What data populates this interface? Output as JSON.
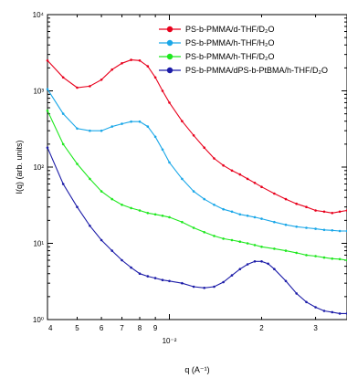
{
  "chart_data": {
    "type": "line",
    "title": "",
    "xlabel": "q (A⁻¹)",
    "ylabel": "I(q) (arb. units)",
    "x_scale": "log",
    "y_scale": "log",
    "xlim": [
      0.004,
      0.038
    ],
    "ylim": [
      1,
      10000
    ],
    "grid": false,
    "legend_position": "top-right",
    "x_tick_labels": [
      {
        "value": 0.004,
        "label": "4"
      },
      {
        "value": 0.005,
        "label": "5"
      },
      {
        "value": 0.006,
        "label": "6"
      },
      {
        "value": 0.007,
        "label": "7"
      },
      {
        "value": 0.008,
        "label": "8"
      },
      {
        "value": 0.009,
        "label": "9"
      },
      {
        "value": 0.01,
        "label": "10⁻²"
      },
      {
        "value": 0.02,
        "label": "2"
      },
      {
        "value": 0.03,
        "label": "3"
      }
    ],
    "y_tick_labels": [
      {
        "value": 1,
        "label": "10⁰"
      },
      {
        "value": 10,
        "label": "10¹"
      },
      {
        "value": 100,
        "label": "10²"
      },
      {
        "value": 1000,
        "label": "10³"
      },
      {
        "value": 10000,
        "label": "10⁴"
      }
    ],
    "series": [
      {
        "name": "PS-b-PMMA/d-THF/D₂O",
        "color": "#e8001c",
        "x": [
          0.004,
          0.0045,
          0.005,
          0.0055,
          0.006,
          0.0065,
          0.007,
          0.0075,
          0.008,
          0.0085,
          0.009,
          0.0095,
          0.01,
          0.011,
          0.012,
          0.013,
          0.014,
          0.015,
          0.016,
          0.017,
          0.018,
          0.019,
          0.02,
          0.022,
          0.024,
          0.026,
          0.028,
          0.03,
          0.032,
          0.034,
          0.036,
          0.038
        ],
        "y": [
          2500,
          1500,
          1100,
          1150,
          1400,
          1900,
          2300,
          2550,
          2500,
          2100,
          1500,
          1000,
          700,
          400,
          260,
          180,
          130,
          105,
          90,
          80,
          70,
          62,
          55,
          45,
          38,
          33,
          30,
          27,
          26,
          25,
          26,
          27
        ]
      },
      {
        "name": "PS-b-PMMA/h-THF/H₂O",
        "color": "#1aa7e8",
        "x": [
          0.004,
          0.0045,
          0.005,
          0.0055,
          0.006,
          0.0065,
          0.007,
          0.0075,
          0.008,
          0.0085,
          0.009,
          0.0095,
          0.01,
          0.011,
          0.012,
          0.013,
          0.014,
          0.015,
          0.016,
          0.017,
          0.018,
          0.019,
          0.02,
          0.022,
          0.024,
          0.026,
          0.028,
          0.03,
          0.032,
          0.034,
          0.036,
          0.038
        ],
        "y": [
          1050,
          500,
          320,
          300,
          300,
          340,
          370,
          395,
          395,
          340,
          250,
          170,
          115,
          70,
          48,
          38,
          32,
          28,
          26,
          24,
          23,
          22,
          21,
          19,
          17.5,
          16.5,
          16,
          15.5,
          15,
          14.8,
          14.5,
          14.5
        ]
      },
      {
        "name": "PS-b-PMMA/h-THF/D₂O",
        "color": "#1ee81e",
        "x": [
          0.004,
          0.0045,
          0.005,
          0.0055,
          0.006,
          0.0065,
          0.007,
          0.0075,
          0.008,
          0.0085,
          0.009,
          0.0095,
          0.01,
          0.011,
          0.012,
          0.013,
          0.014,
          0.015,
          0.016,
          0.017,
          0.018,
          0.019,
          0.02,
          0.022,
          0.024,
          0.026,
          0.028,
          0.03,
          0.032,
          0.034,
          0.036,
          0.038
        ],
        "y": [
          550,
          200,
          110,
          70,
          48,
          38,
          32,
          29,
          27,
          25,
          24,
          23,
          22,
          19,
          16,
          14,
          12.5,
          11.5,
          11,
          10.5,
          10,
          9.5,
          9,
          8.5,
          8,
          7.5,
          7,
          6.8,
          6.5,
          6.3,
          6.2,
          6
        ]
      },
      {
        "name": "PS-b-PMMA/dPS-b-PtBMA/h-THF/D₂O",
        "color": "#1c1ca8",
        "x": [
          0.004,
          0.0045,
          0.005,
          0.0055,
          0.006,
          0.0065,
          0.007,
          0.0075,
          0.008,
          0.0085,
          0.009,
          0.0095,
          0.01,
          0.011,
          0.012,
          0.013,
          0.014,
          0.015,
          0.016,
          0.017,
          0.018,
          0.019,
          0.02,
          0.021,
          0.022,
          0.024,
          0.026,
          0.028,
          0.03,
          0.032,
          0.034,
          0.036,
          0.038
        ],
        "y": [
          180,
          60,
          30,
          17,
          11,
          8,
          6,
          4.8,
          4,
          3.7,
          3.5,
          3.3,
          3.2,
          3,
          2.7,
          2.6,
          2.7,
          3.1,
          3.8,
          4.6,
          5.3,
          5.8,
          5.8,
          5.4,
          4.6,
          3.2,
          2.2,
          1.7,
          1.45,
          1.3,
          1.25,
          1.2,
          1.2
        ]
      }
    ]
  }
}
